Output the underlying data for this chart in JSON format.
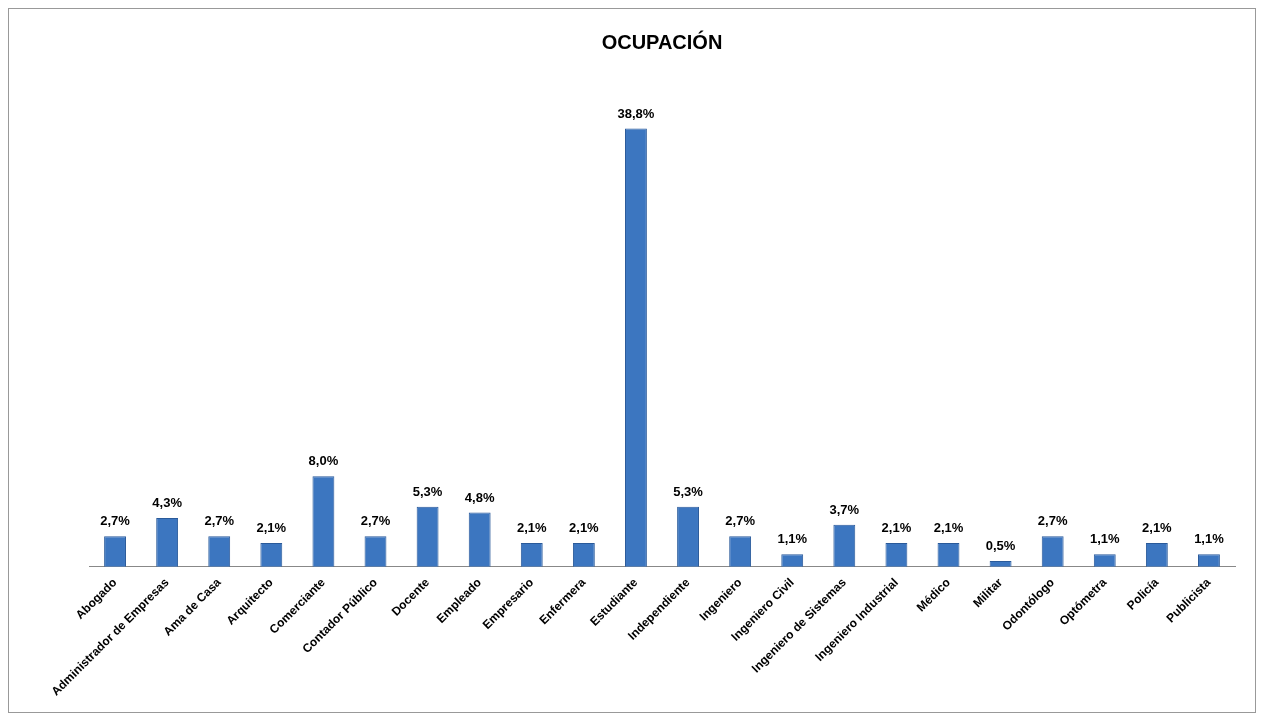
{
  "chart_data": {
    "type": "bar",
    "title": "OCUPACIÓN",
    "categories": [
      "Abogado",
      "Administrador de Empresas",
      "Ama de Casa",
      "Arquitecto",
      "Comerciante",
      "Contador Público",
      "Docente",
      "Empleado",
      "Empresario",
      "Enfermera",
      "Estudiante",
      "Independiente",
      "Ingeniero",
      "Ingeniero Civil",
      "Ingeniero de Sistemas",
      "Ingeniero Industrial",
      "Médico",
      "Militar",
      "Odontólogo",
      "Optómetra",
      "Policía",
      "Publicista"
    ],
    "values": [
      2.7,
      4.3,
      2.7,
      2.1,
      8.0,
      2.7,
      5.3,
      4.8,
      2.1,
      2.1,
      38.8,
      5.3,
      2.7,
      1.1,
      3.7,
      2.1,
      2.1,
      0.5,
      2.7,
      1.1,
      2.1,
      1.1
    ],
    "value_labels": [
      "2,7%",
      "4,3%",
      "2,7%",
      "2,1%",
      "8,0%",
      "2,7%",
      "5,3%",
      "4,8%",
      "2,1%",
      "2,1%",
      "38,8%",
      "5,3%",
      "2,7%",
      "1,1%",
      "3,7%",
      "2,1%",
      "2,1%",
      "0,5%",
      "2,7%",
      "1,1%",
      "2,1%",
      "1,1%"
    ],
    "color": "#3c76c0",
    "grid": false,
    "legend": false
  }
}
